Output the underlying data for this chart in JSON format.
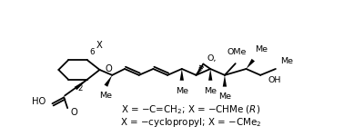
{
  "background_color": "#ffffff",
  "line_color": "#000000",
  "line_width": 1.3,
  "text_color": "#000000",
  "figsize": [
    3.78,
    1.5
  ],
  "dpi": 100,
  "label_6": "6",
  "label_2": "2",
  "label_X": "X",
  "label_O_ring": "O",
  "label_OMe": "OMe",
  "label_OH": "OH",
  "label_HO": "HO",
  "label_O_carbonyl": "O",
  "label_O_epoxide": "O",
  "label_Me": "Me"
}
